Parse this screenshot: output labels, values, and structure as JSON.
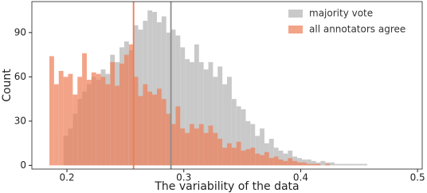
{
  "chart_data": {
    "type": "histogram",
    "x_label": "The variability of the data",
    "y_label": "Count",
    "bins": [
      0.185,
      0.189,
      0.193,
      0.197,
      0.201,
      0.205,
      0.209,
      0.213,
      0.217,
      0.221,
      0.225,
      0.229,
      0.233,
      0.237,
      0.241,
      0.245,
      0.249,
      0.253,
      0.257,
      0.261,
      0.265,
      0.269,
      0.273,
      0.277,
      0.281,
      0.285,
      0.289,
      0.293,
      0.297,
      0.301,
      0.305,
      0.309,
      0.313,
      0.317,
      0.321,
      0.325,
      0.329,
      0.333,
      0.337,
      0.341,
      0.345,
      0.349,
      0.353,
      0.357,
      0.361,
      0.365,
      0.369,
      0.373,
      0.377,
      0.381,
      0.385,
      0.389,
      0.393,
      0.397,
      0.401,
      0.405,
      0.409,
      0.413,
      0.417,
      0.421,
      0.425,
      0.429,
      0.433,
      0.437,
      0.441,
      0.445,
      0.449,
      0.453,
      0.457,
      0.461
    ],
    "series": [
      {
        "name": "majority vote",
        "color": "#c9c9c9",
        "opacity": 1,
        "values": [
          0,
          0,
          0,
          20,
          25,
          35,
          45,
          50,
          55,
          60,
          58,
          65,
          62,
          75,
          70,
          80,
          84,
          78,
          95,
          92,
          98,
          105,
          104,
          97,
          101,
          90,
          92,
          88,
          80,
          72,
          70,
          82,
          70,
          65,
          70,
          60,
          67,
          55,
          60,
          45,
          40,
          38,
          30,
          28,
          20,
          25,
          15,
          18,
          12,
          10,
          8,
          10,
          6,
          5,
          4,
          4,
          3,
          2,
          3,
          2,
          2,
          1,
          1,
          1,
          1,
          1,
          1,
          1,
          0
        ]
      },
      {
        "name": "all annotators agree",
        "color": "#ee7d55",
        "opacity": 0.7,
        "values": [
          74,
          55,
          64,
          60,
          62,
          48,
          60,
          76,
          58,
          63,
          62,
          60,
          55,
          70,
          54,
          69,
          75,
          82,
          60,
          47,
          55,
          50,
          48,
          52,
          45,
          35,
          28,
          40,
          25,
          22,
          28,
          25,
          28,
          22,
          27,
          22,
          18,
          12,
          15,
          12,
          16,
          10,
          11,
          12,
          8,
          7,
          9,
          5,
          6,
          4,
          3,
          5,
          3,
          2,
          2,
          1,
          1,
          1,
          0,
          1,
          0,
          0,
          0,
          0,
          0,
          0,
          0,
          0,
          0
        ]
      }
    ],
    "vlines": [
      {
        "x": 0.257,
        "color": "#ee7d55"
      },
      {
        "x": 0.289,
        "color": "#8c8c8c"
      }
    ],
    "xlim": [
      0.17,
      0.504
    ],
    "xticks": [
      0.2,
      0.3,
      0.4,
      0.5
    ],
    "ylim": [
      -2.5,
      111
    ],
    "yticks": [
      0,
      30,
      60,
      90
    ],
    "grid": false,
    "legend": "upper right"
  }
}
